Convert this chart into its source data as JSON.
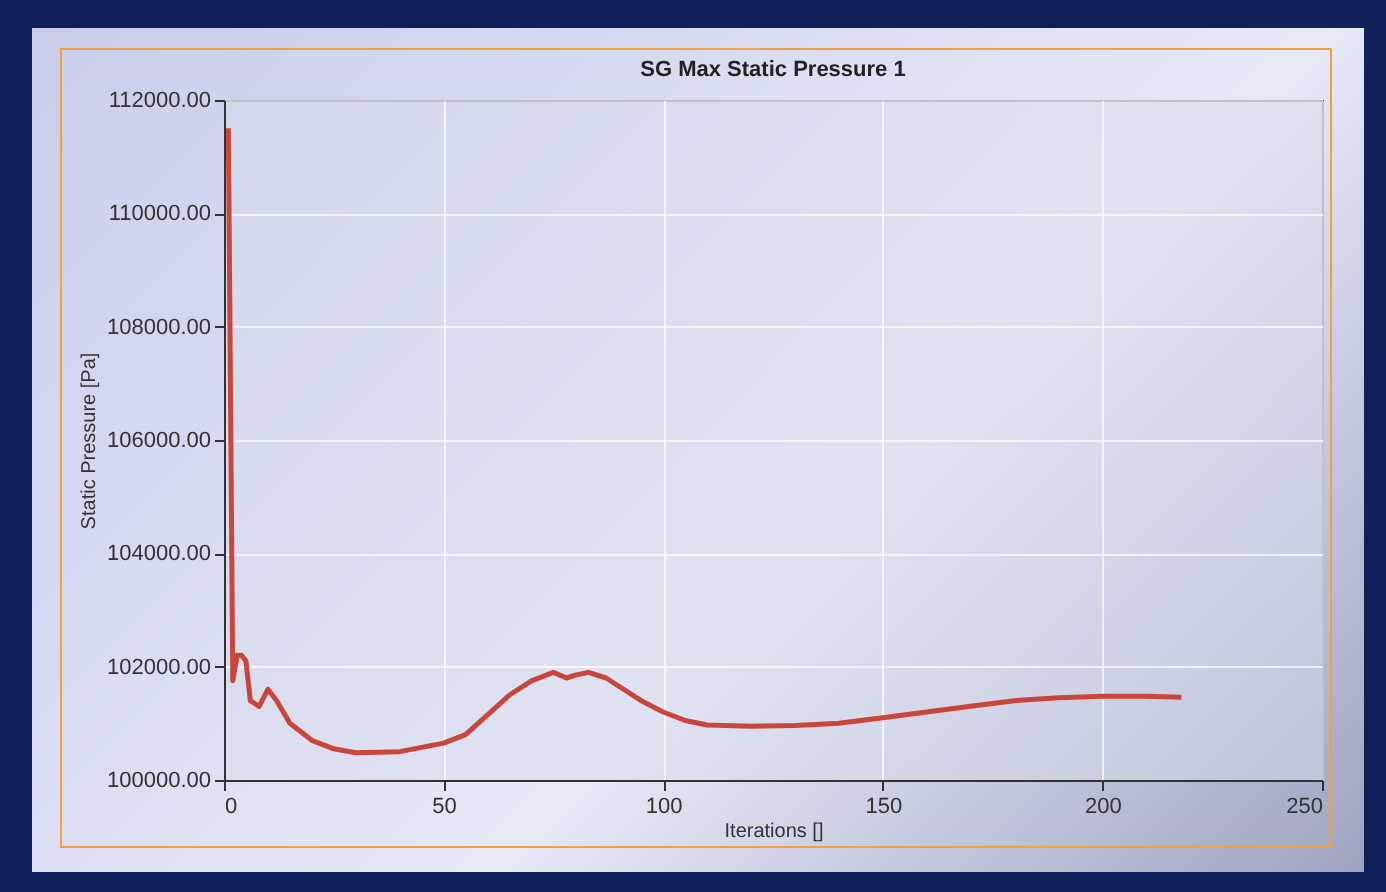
{
  "chart_data": {
    "type": "line",
    "title": "SG Max Static Pressure 1",
    "xlabel": "Iterations []",
    "ylabel": "Static Pressure [Pa]",
    "x": [
      1,
      2,
      3,
      4,
      5,
      6,
      7,
      8,
      10,
      12,
      15,
      20,
      25,
      30,
      40,
      50,
      55,
      60,
      65,
      70,
      75,
      78,
      80,
      83,
      87,
      90,
      95,
      100,
      105,
      110,
      120,
      130,
      140,
      150,
      160,
      170,
      180,
      190,
      200,
      210,
      218
    ],
    "series": [
      {
        "color": "#c8463c",
        "values": [
          111500,
          101750,
          102200,
          102200,
          102100,
          101400,
          101350,
          101300,
          101600,
          101400,
          101000,
          100700,
          100550,
          100480,
          100500,
          100650,
          100800,
          101150,
          101500,
          101750,
          101900,
          101800,
          101850,
          101900,
          101800,
          101650,
          101400,
          101200,
          101050,
          100970,
          100950,
          100960,
          101000,
          101100,
          101200,
          101300,
          101400,
          101450,
          101480,
          101480,
          101460
        ]
      }
    ],
    "xlim": [
      0,
      250
    ],
    "xticks": [
      0,
      50,
      100,
      150,
      200,
      250
    ],
    "ylim": [
      100000,
      112000
    ],
    "yticks": [
      {
        "value": 100000,
        "label": "100000.00"
      },
      {
        "value": 102000,
        "label": "102000.00"
      },
      {
        "value": 104000,
        "label": "104000.00"
      },
      {
        "value": 106000,
        "label": "106000.00"
      },
      {
        "value": 108000,
        "label": "108000.00"
      },
      {
        "value": 110000,
        "label": "110000.00"
      },
      {
        "value": 112000,
        "label": "112000.00"
      }
    ],
    "grid": true,
    "marker": "none",
    "line_style": "solid"
  }
}
